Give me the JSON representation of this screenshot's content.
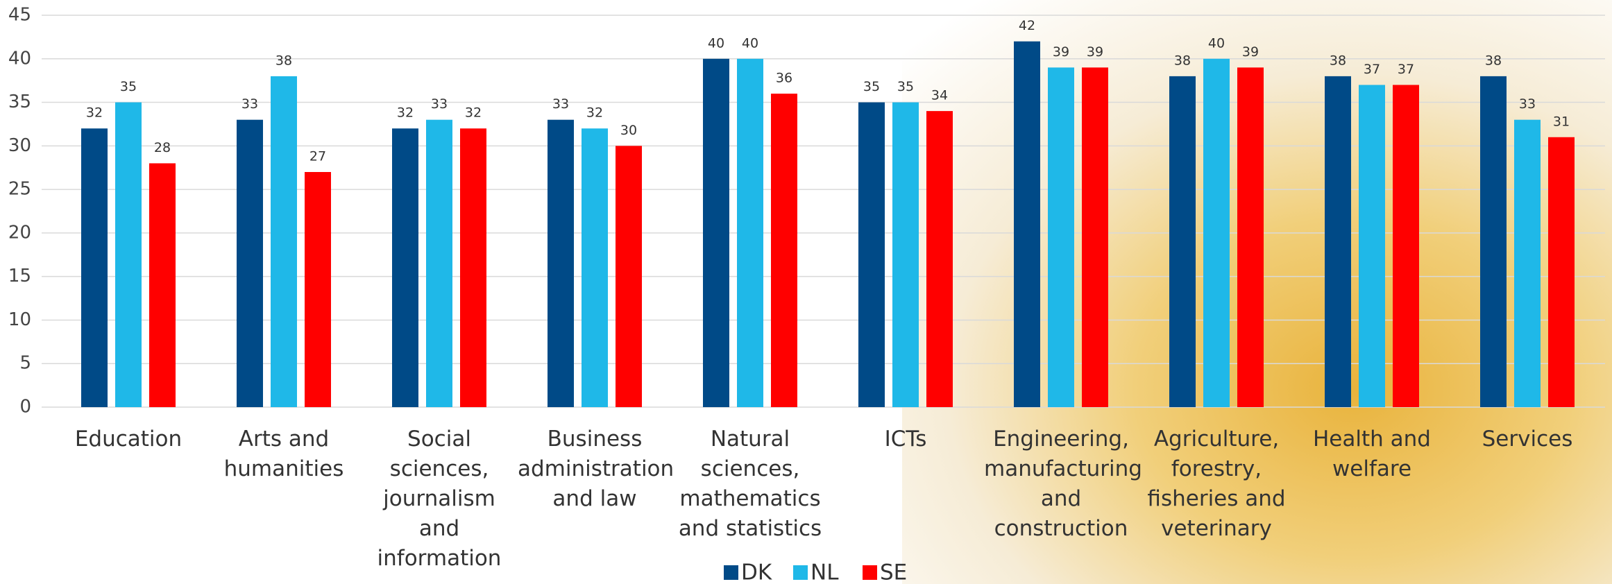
{
  "chart_data": {
    "type": "bar",
    "categories": [
      "Education",
      "Arts and humanities",
      "Social sciences, journalism and information",
      "Business administration and law",
      "Natural sciences, mathematics and statistics",
      "ICTs",
      "Engineering, manufacturing and construction",
      "Agriculture, forestry, fisheries and veterinary",
      "Health and welfare",
      "Services"
    ],
    "series": [
      {
        "name": "DK",
        "color": "#004a87",
        "values": [
          32,
          33,
          32,
          33,
          40,
          35,
          42,
          38,
          38,
          38
        ]
      },
      {
        "name": "NL",
        "color": "#1fb8e8",
        "values": [
          35,
          38,
          33,
          32,
          40,
          35,
          39,
          40,
          37,
          33
        ]
      },
      {
        "name": "SE",
        "color": "#ff0000",
        "values": [
          28,
          27,
          32,
          30,
          36,
          34,
          39,
          39,
          37,
          31
        ]
      }
    ],
    "ylim": [
      0,
      45
    ],
    "yticks": [
      0,
      5,
      10,
      15,
      20,
      25,
      30,
      35,
      40,
      45
    ],
    "grid": true,
    "legend": "bottom"
  }
}
